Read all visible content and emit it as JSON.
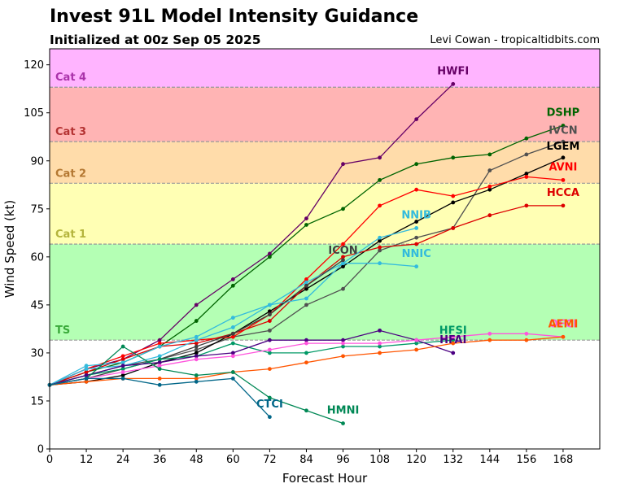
{
  "header": {
    "title": "Invest 91L Model Intensity Guidance",
    "subtitle": "Initialized at 00z Sep 05 2025",
    "credit": "Levi Cowan - tropicaltidbits.com"
  },
  "chart_data": {
    "type": "line",
    "xlabel": "Forecast Hour",
    "ylabel": "Wind Speed (kt)",
    "xlim": [
      0,
      180
    ],
    "ylim": [
      0,
      125
    ],
    "xticks": [
      0,
      12,
      24,
      36,
      48,
      60,
      72,
      84,
      96,
      108,
      120,
      132,
      144,
      156,
      168
    ],
    "yticks": [
      0,
      15,
      30,
      45,
      60,
      75,
      90,
      105,
      120
    ],
    "grid": false,
    "bands": [
      {
        "label": "TS",
        "from": 34,
        "to": 64,
        "color": "#b4ffb4",
        "label_color": "#3aaa3a"
      },
      {
        "label": "Cat 1",
        "from": 64,
        "to": 83,
        "color": "#ffffb4",
        "label_color": "#b4b43c"
      },
      {
        "label": "Cat 2",
        "from": 83,
        "to": 96,
        "color": "#ffdcaa",
        "label_color": "#b47832"
      },
      {
        "label": "Cat 3",
        "from": 96,
        "to": 113,
        "color": "#ffb4b4",
        "label_color": "#b43232"
      },
      {
        "label": "Cat 4",
        "from": 113,
        "to": 125,
        "color": "#ffb4ff",
        "label_color": "#aa32aa"
      }
    ],
    "series": [
      {
        "name": "HWFI",
        "color": "#660066",
        "x": [
          0,
          12,
          24,
          36,
          48,
          60,
          72,
          84,
          96,
          108,
          120,
          132
        ],
        "y": [
          20,
          25,
          28,
          34,
          45,
          53,
          61,
          72,
          89,
          91,
          103,
          114
        ]
      },
      {
        "name": "DSHP",
        "color": "#006400",
        "x": [
          0,
          12,
          24,
          36,
          48,
          60,
          72,
          84,
          96,
          108,
          120,
          132,
          144,
          156,
          168
        ],
        "y": [
          20,
          24,
          27,
          32,
          40,
          51,
          60,
          70,
          75,
          84,
          89,
          91,
          92,
          97,
          101
        ]
      },
      {
        "name": "IVCN",
        "color": "#505050",
        "x": [
          0,
          12,
          24,
          36,
          48,
          60,
          72,
          84,
          96,
          108,
          120,
          132,
          144,
          156,
          168
        ],
        "y": [
          20,
          23,
          26,
          28,
          31,
          35,
          37,
          45,
          50,
          62,
          66,
          69,
          87,
          92,
          96
        ]
      },
      {
        "name": "LGEM",
        "color": "#000000",
        "x": [
          0,
          12,
          24,
          36,
          48,
          60,
          72,
          84,
          96,
          108,
          120,
          132,
          144,
          156,
          168
        ],
        "y": [
          20,
          21,
          23,
          27,
          30,
          36,
          43,
          50,
          57,
          65,
          71,
          77,
          81,
          86,
          91
        ]
      },
      {
        "name": "AVNI",
        "color": "#ff0000",
        "x": [
          0,
          12,
          24,
          36,
          48,
          60,
          72,
          84,
          96,
          108,
          120,
          132,
          144,
          156,
          168
        ],
        "y": [
          20,
          25,
          29,
          33,
          34,
          35,
          42,
          53,
          64,
          76,
          81,
          79,
          82,
          85,
          84
        ]
      },
      {
        "name": "HCCA",
        "color": "#dd0000",
        "x": [
          0,
          12,
          24,
          36,
          48,
          60,
          72,
          84,
          96,
          108,
          120,
          132,
          144,
          156,
          168
        ],
        "y": [
          20,
          24,
          28,
          32,
          33,
          36,
          40,
          51,
          60,
          63,
          64,
          69,
          73,
          76,
          76
        ]
      },
      {
        "name": "NNIB",
        "color": "#33bbdd",
        "x": [
          0,
          12,
          24,
          36,
          48,
          60,
          72,
          84,
          96,
          108,
          120
        ],
        "y": [
          20,
          26,
          27,
          32,
          35,
          41,
          45,
          47,
          58,
          66,
          69
        ]
      },
      {
        "name": "NNIC",
        "color": "#33bbdd",
        "x": [
          0,
          12,
          24,
          36,
          48,
          60,
          72,
          84,
          96,
          108,
          120
        ],
        "y": [
          20,
          25,
          26,
          29,
          34,
          38,
          45,
          52,
          58,
          58,
          57
        ]
      },
      {
        "name": "ICON",
        "color": "#404040",
        "x": [
          0,
          12,
          24,
          36,
          48,
          60,
          72,
          84,
          96
        ],
        "y": [
          20,
          22,
          25,
          28,
          32,
          36,
          42,
          51,
          59
        ]
      },
      {
        "name": "HFSI",
        "color": "#009966",
        "x": [
          0,
          12,
          24,
          36,
          48,
          60,
          72,
          84,
          96,
          108,
          120,
          132
        ],
        "y": [
          20,
          23,
          25,
          28,
          29,
          33,
          30,
          30,
          32,
          32,
          33,
          34
        ]
      },
      {
        "name": "HFAI",
        "color": "#4b0082",
        "x": [
          0,
          12,
          24,
          36,
          48,
          60,
          72,
          84,
          96,
          108,
          120,
          132
        ],
        "y": [
          20,
          23,
          26,
          27,
          29,
          30,
          34,
          34,
          34,
          37,
          34,
          30
        ]
      },
      {
        "name": "OFCI",
        "color": "#ff55dd",
        "x": [
          0,
          12,
          24,
          36,
          48,
          60,
          72,
          84,
          96,
          108,
          120,
          132,
          144,
          156,
          168
        ],
        "y": [
          20,
          22,
          24,
          26,
          28,
          29,
          31,
          33,
          33,
          33,
          34,
          35,
          36,
          36,
          35
        ]
      },
      {
        "name": "AEMI",
        "color": "#ff5500",
        "x": [
          0,
          12,
          24,
          36,
          48,
          60,
          72,
          84,
          96,
          108,
          120,
          132,
          144,
          156,
          168
        ],
        "y": [
          20,
          21,
          22,
          22,
          22,
          24,
          25,
          27,
          29,
          30,
          31,
          33,
          34,
          34,
          35
        ]
      },
      {
        "name": "HMNI",
        "color": "#008855",
        "x": [
          0,
          12,
          24,
          36,
          48,
          60,
          72,
          84,
          96
        ],
        "y": [
          20,
          22,
          32,
          25,
          23,
          24,
          16,
          12,
          8
        ]
      },
      {
        "name": "CTCI",
        "color": "#006688",
        "x": [
          0,
          12,
          24,
          36,
          48,
          60,
          72
        ],
        "y": [
          20,
          22,
          22,
          20,
          21,
          22,
          10
        ]
      }
    ],
    "annotations": [
      {
        "text": "HWFI",
        "x": 132,
        "y": 117,
        "color": "#660066"
      },
      {
        "text": "DSHP",
        "x": 168,
        "y": 104,
        "color": "#006400"
      },
      {
        "text": "IVCN",
        "x": 168,
        "y": 98.5,
        "color": "#505050"
      },
      {
        "text": "LGEM",
        "x": 168,
        "y": 93.5,
        "color": "#000000"
      },
      {
        "text": "AVNI",
        "x": 168,
        "y": 87,
        "color": "#ff0000"
      },
      {
        "text": "HCCA",
        "x": 168,
        "y": 79,
        "color": "#dd0000"
      },
      {
        "text": "NNIB",
        "x": 120,
        "y": 72,
        "color": "#33bbdd"
      },
      {
        "text": "NNIC",
        "x": 120,
        "y": 60,
        "color": "#33bbdd"
      },
      {
        "text": "ICON",
        "x": 96,
        "y": 61,
        "color": "#404040"
      },
      {
        "text": "HFSI",
        "x": 132,
        "y": 36,
        "color": "#009966"
      },
      {
        "text": "HFAI",
        "x": 132,
        "y": 33,
        "color": "#4b0082"
      },
      {
        "text": "OFCI",
        "x": 168,
        "y": 38,
        "color": "#ff55dd"
      },
      {
        "text": "AEMI",
        "x": 168,
        "y": 38,
        "color": "#ff5500"
      },
      {
        "text": "HMNI",
        "x": 96,
        "y": 11,
        "color": "#008855"
      },
      {
        "text": "CTCI",
        "x": 72,
        "y": 13,
        "color": "#006688"
      }
    ]
  }
}
